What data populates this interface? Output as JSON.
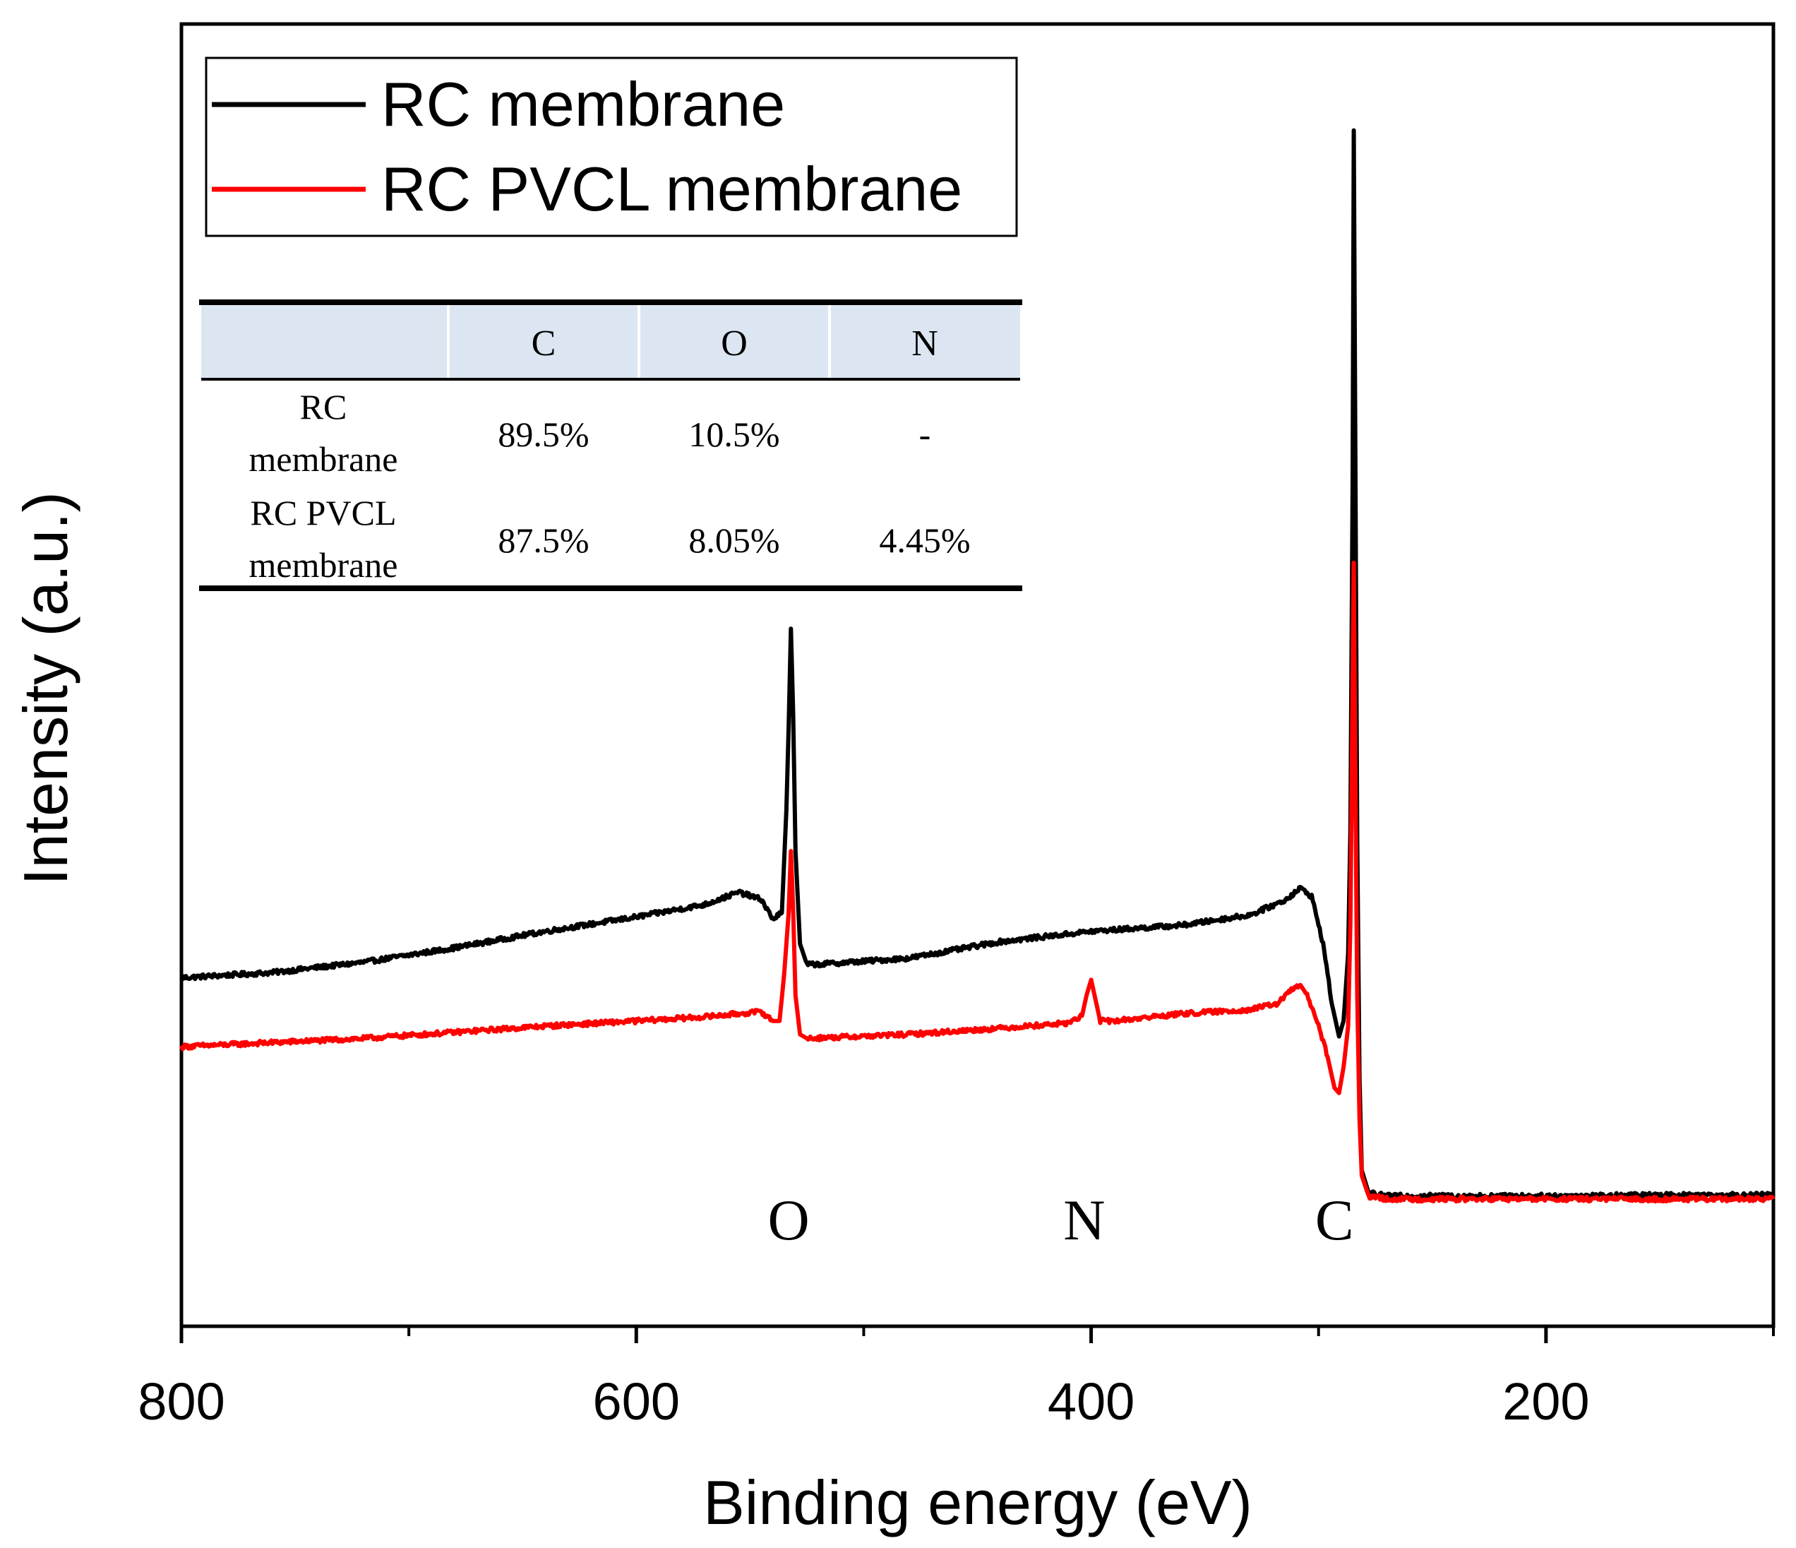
{
  "chart_data": {
    "type": "line",
    "title": "",
    "xlabel": "Binding energy (eV)",
    "ylabel": "Intensity (a.u.)",
    "xlim": [
      800,
      100
    ],
    "ylim": [
      -0.2,
      10.5
    ],
    "x_ticks": [
      "800",
      "600",
      "400",
      "200"
    ],
    "x_tick_values": [
      800,
      600,
      400,
      200
    ],
    "x_minor_tick_values": [
      700,
      500,
      300,
      100
    ],
    "y_ticks_shown": false,
    "legend": {
      "placement": "top-left",
      "entries": [
        {
          "label": "RC membrane",
          "color": "#000000"
        },
        {
          "label": "RC PVCL membrane",
          "color": "#ff0000"
        }
      ]
    },
    "annotations": [
      {
        "text": "O",
        "x": 533
      },
      {
        "text": "N",
        "x": 403
      },
      {
        "text": "C",
        "x": 293
      }
    ],
    "series": [
      {
        "name": "RC membrane",
        "color": "#000000",
        "points": [
          [
            800,
            2.17
          ],
          [
            760,
            2.22
          ],
          [
            720,
            2.32
          ],
          [
            680,
            2.46
          ],
          [
            640,
            2.62
          ],
          [
            600,
            2.76
          ],
          [
            570,
            2.88
          ],
          [
            555,
            3.0
          ],
          [
            545,
            2.93
          ],
          [
            540,
            2.74
          ],
          [
            536,
            2.8
          ],
          [
            534,
            3.8
          ],
          [
            533,
            4.6
          ],
          [
            532,
            5.56
          ],
          [
            531,
            4.7
          ],
          [
            530,
            3.4
          ],
          [
            528,
            2.5
          ],
          [
            525,
            2.3
          ],
          [
            520,
            2.3
          ],
          [
            480,
            2.36
          ],
          [
            440,
            2.52
          ],
          [
            400,
            2.62
          ],
          [
            360,
            2.68
          ],
          [
            330,
            2.78
          ],
          [
            315,
            2.92
          ],
          [
            308,
            3.04
          ],
          [
            303,
            2.96
          ],
          [
            298,
            2.5
          ],
          [
            294,
            1.9
          ],
          [
            291,
            1.6
          ],
          [
            289,
            1.75
          ],
          [
            287,
            2.4
          ],
          [
            286,
            3.6
          ],
          [
            285,
            7.0
          ],
          [
            284.5,
            10.4
          ],
          [
            284,
            8.0
          ],
          [
            283,
            3.5
          ],
          [
            282,
            1.2
          ],
          [
            281,
            0.3
          ],
          [
            278,
            0.08
          ],
          [
            270,
            0.05
          ],
          [
            200,
            0.05
          ],
          [
            150,
            0.06
          ],
          [
            100,
            0.06
          ]
        ]
      },
      {
        "name": "RC PVCL membrane",
        "color": "#ff0000",
        "points": [
          [
            800,
            1.5
          ],
          [
            760,
            1.54
          ],
          [
            720,
            1.58
          ],
          [
            680,
            1.64
          ],
          [
            640,
            1.7
          ],
          [
            600,
            1.75
          ],
          [
            570,
            1.79
          ],
          [
            555,
            1.82
          ],
          [
            545,
            1.84
          ],
          [
            540,
            1.75
          ],
          [
            537,
            1.75
          ],
          [
            535,
            2.2
          ],
          [
            533,
            2.8
          ],
          [
            532,
            3.4
          ],
          [
            531,
            2.8
          ],
          [
            530,
            2.0
          ],
          [
            528,
            1.62
          ],
          [
            525,
            1.58
          ],
          [
            480,
            1.62
          ],
          [
            440,
            1.68
          ],
          [
            410,
            1.73
          ],
          [
            404,
            1.8
          ],
          [
            402,
            2.0
          ],
          [
            400,
            2.15
          ],
          [
            398,
            1.95
          ],
          [
            396,
            1.75
          ],
          [
            390,
            1.75
          ],
          [
            360,
            1.82
          ],
          [
            330,
            1.86
          ],
          [
            318,
            1.92
          ],
          [
            312,
            2.05
          ],
          [
            308,
            2.1
          ],
          [
            305,
            2.0
          ],
          [
            300,
            1.7
          ],
          [
            296,
            1.4
          ],
          [
            293,
            1.1
          ],
          [
            291,
            1.05
          ],
          [
            289,
            1.3
          ],
          [
            287,
            1.7
          ],
          [
            286,
            2.7
          ],
          [
            285,
            5.0
          ],
          [
            284.5,
            6.2
          ],
          [
            284,
            4.5
          ],
          [
            283,
            2.0
          ],
          [
            282,
            0.8
          ],
          [
            281,
            0.25
          ],
          [
            278,
            0.05
          ],
          [
            270,
            0.02
          ],
          [
            200,
            0.02
          ],
          [
            150,
            0.02
          ],
          [
            100,
            0.02
          ]
        ]
      }
    ],
    "table": {
      "columns": [
        "",
        "C",
        "O",
        "N"
      ],
      "rows": [
        {
          "name_line1": "RC",
          "name_line2": "membrane",
          "cells": [
            "89.5%",
            "10.5%",
            "-"
          ]
        },
        {
          "name_line1": "RC PVCL",
          "name_line2": "membrane",
          "cells": [
            "87.5%",
            "8.05%",
            "4.45%"
          ]
        }
      ]
    }
  }
}
